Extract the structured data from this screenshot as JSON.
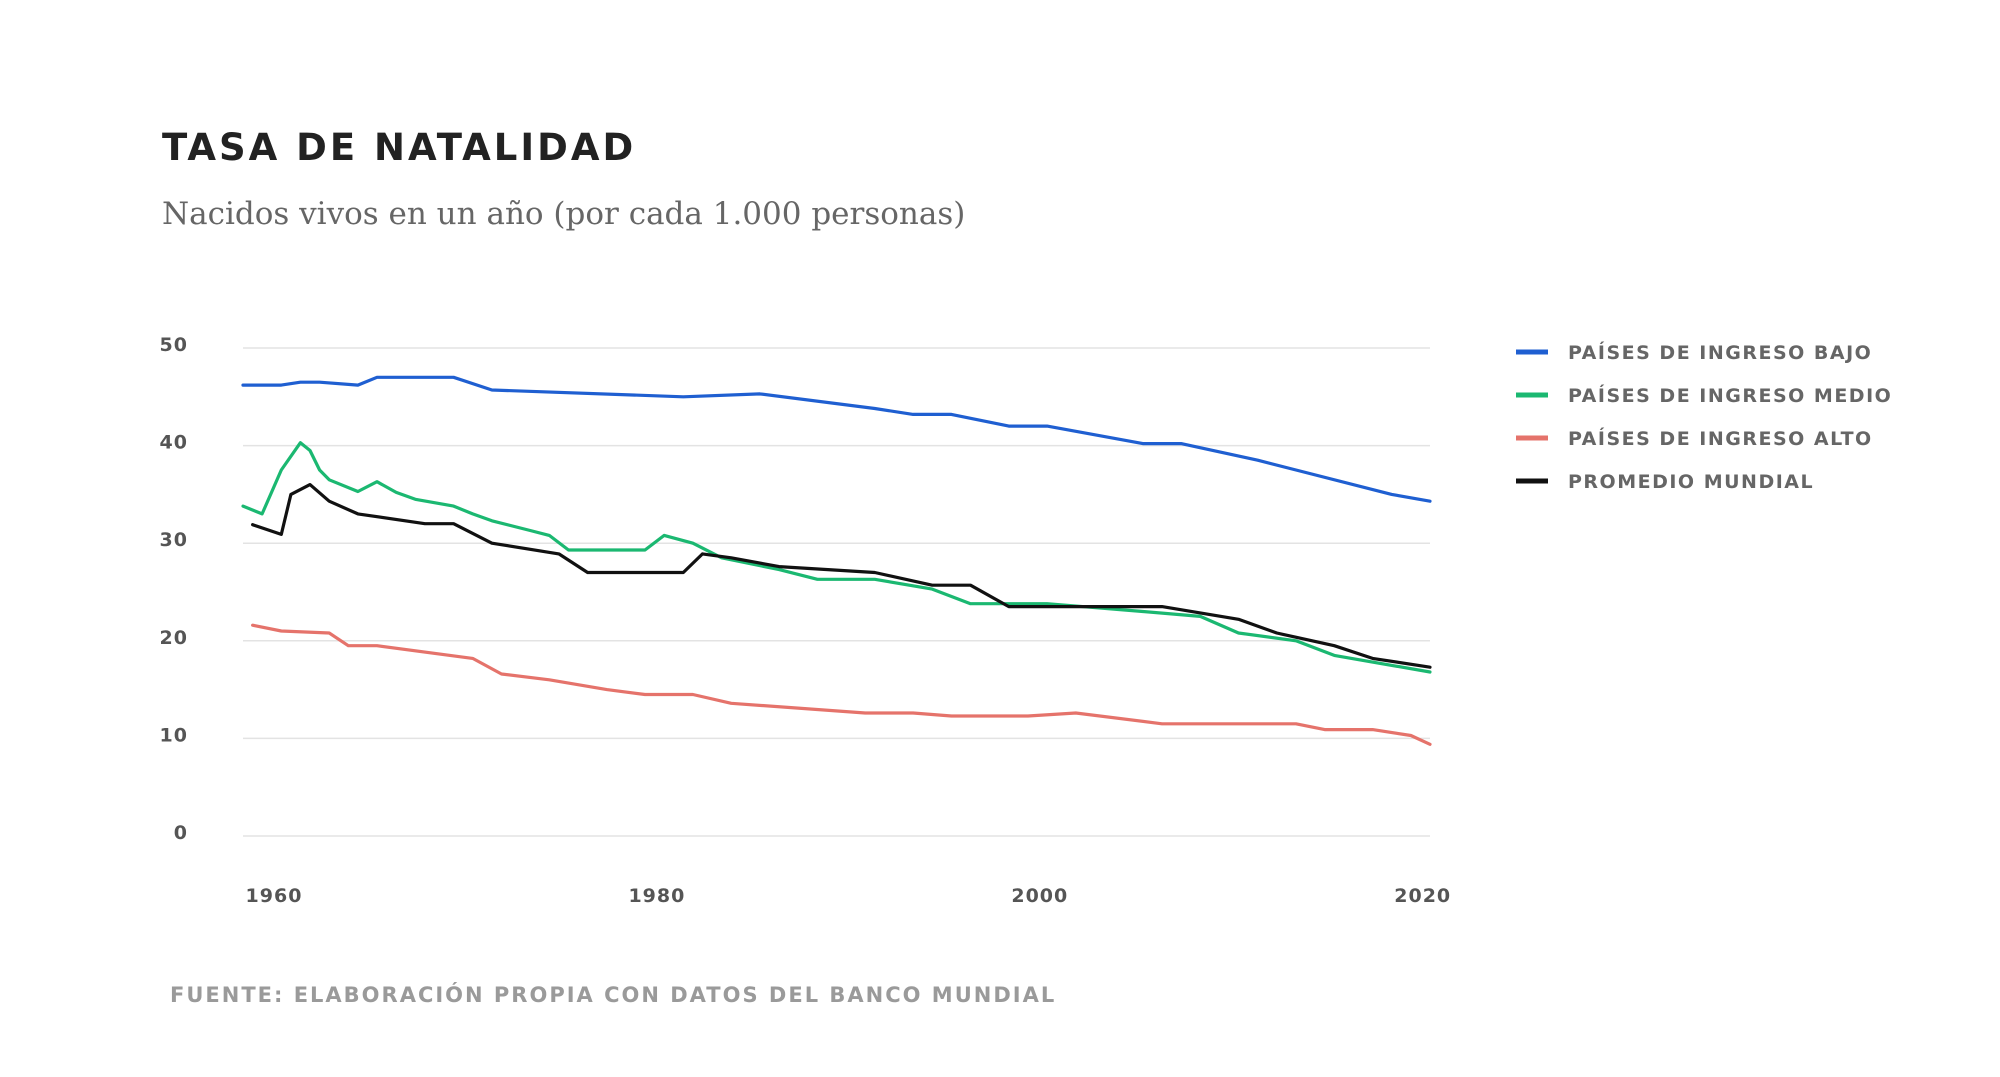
{
  "chart_data": {
    "type": "line",
    "title": "TASA DE NATALIDAD",
    "subtitle": "Nacidos vivos en un año (por cada 1.000 personas)",
    "source": "FUENTE: ELABORACIÓN PROPIA CON DATOS DEL BANCO MUNDIAL",
    "xlabel": "",
    "ylabel": "",
    "xlim": [
      1960,
      2022
    ],
    "ylim": [
      0,
      50
    ],
    "yticks": [
      0,
      10,
      20,
      30,
      40,
      50
    ],
    "xticks": [
      1960,
      1980,
      2000,
      2020
    ],
    "grid": true,
    "legend_position": "right",
    "series": [
      {
        "name": "PAÍSES DE INGRESO BAJO",
        "color": "#1f5fd1",
        "x": [
          1960,
          1962,
          1963,
          1964,
          1966,
          1967,
          1971,
          1973,
          1983,
          1987,
          1993,
          1995,
          1997,
          2000,
          2002,
          2007,
          2009,
          2013,
          2015,
          2020,
          2022
        ],
        "values": [
          46.2,
          46.2,
          46.5,
          46.5,
          46.2,
          47,
          47,
          45.7,
          45,
          45.3,
          43.8,
          43.2,
          43.2,
          42,
          42,
          40.2,
          40.2,
          38.5,
          37.5,
          35,
          34.3
        ]
      },
      {
        "name": "PAÍSES DE INGRESO MEDIO",
        "color": "#1bb871",
        "x": [
          1960,
          1961,
          1962,
          1963,
          1963.5,
          1964,
          1964.5,
          1966,
          1967,
          1968,
          1969,
          1971,
          1972,
          1973,
          1975,
          1976,
          1977,
          1981,
          1982,
          1983.5,
          1985,
          1988,
          1990,
          1993,
          1996,
          1998,
          2002,
          2007,
          2010,
          2012,
          2015,
          2017,
          2022
        ],
        "values": [
          33.8,
          33,
          37.5,
          40.3,
          39.5,
          37.5,
          36.5,
          35.3,
          36.3,
          35.2,
          34.5,
          33.8,
          33,
          32.3,
          31.3,
          30.8,
          29.3,
          29.3,
          30.8,
          30,
          28.5,
          27.3,
          26.3,
          26.3,
          25.3,
          23.8,
          23.8,
          23,
          22.5,
          20.8,
          20,
          18.5,
          16.8
        ]
      },
      {
        "name": "PAÍSES DE INGRESO ALTO",
        "color": "#e5736b",
        "x": [
          1960.5,
          1962,
          1964.5,
          1965.5,
          1967,
          1972,
          1973.5,
          1976,
          1979,
          1981,
          1983.5,
          1985.5,
          1992.5,
          1995,
          1997,
          2001,
          2003.5,
          2008,
          2015,
          2016.5,
          2019,
          2021,
          2022
        ],
        "values": [
          21.6,
          21,
          20.8,
          19.5,
          19.5,
          18.2,
          16.6,
          16,
          15,
          14.5,
          14.5,
          13.6,
          12.6,
          12.6,
          12.3,
          12.3,
          12.6,
          11.5,
          11.5,
          10.9,
          10.9,
          10.3,
          9.4
        ]
      },
      {
        "name": "PROMEDIO MUNDIAL",
        "color": "#111111",
        "x": [
          1960.5,
          1962,
          1962.5,
          1963.5,
          1964.5,
          1966,
          1969.5,
          1971,
          1973,
          1976.5,
          1978,
          1983,
          1984,
          1985.5,
          1988,
          1993,
          1996,
          1998,
          2000,
          2003,
          2008,
          2012,
          2014,
          2017,
          2019,
          2022
        ],
        "values": [
          31.9,
          30.9,
          35,
          36,
          34.3,
          33,
          32,
          32,
          30,
          28.9,
          27,
          27,
          28.9,
          28.5,
          27.6,
          27,
          25.7,
          25.7,
          23.5,
          23.5,
          23.5,
          22.2,
          20.8,
          19.5,
          18.2,
          17.3
        ]
      }
    ]
  }
}
